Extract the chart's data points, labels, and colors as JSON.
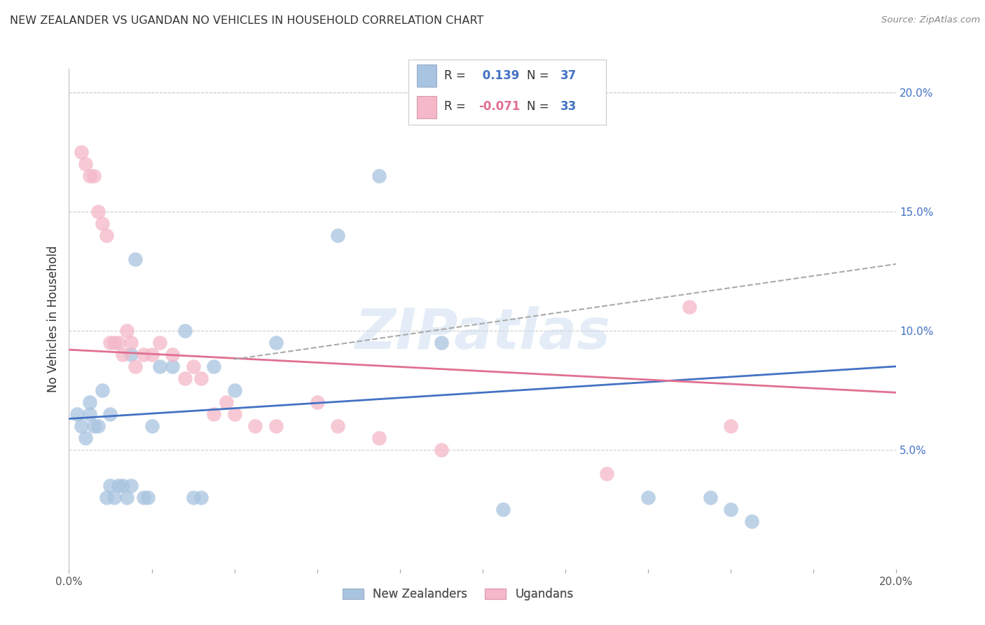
{
  "title": "NEW ZEALANDER VS UGANDAN NO VEHICLES IN HOUSEHOLD CORRELATION CHART",
  "source": "Source: ZipAtlas.com",
  "ylabel": "No Vehicles in Household",
  "right_yticks": [
    "20.0%",
    "15.0%",
    "10.0%",
    "5.0%"
  ],
  "right_ytick_vals": [
    0.2,
    0.15,
    0.1,
    0.05
  ],
  "xlim": [
    0.0,
    0.2
  ],
  "ylim": [
    0.0,
    0.21
  ],
  "legend_nz_r": "0.139",
  "legend_nz_n": "37",
  "legend_ug_r": "-0.071",
  "legend_ug_n": "33",
  "nz_color": "#a8c4e0",
  "ug_color": "#f4b8c8",
  "nz_line_color": "#4472c4",
  "ug_line_color": "#e07090",
  "trend_line_color": "#aaaaaa",
  "watermark": "ZIPatlas",
  "nz_scatter_x": [
    0.002,
    0.003,
    0.004,
    0.005,
    0.005,
    0.006,
    0.007,
    0.008,
    0.009,
    0.01,
    0.01,
    0.011,
    0.012,
    0.013,
    0.014,
    0.015,
    0.015,
    0.016,
    0.018,
    0.019,
    0.02,
    0.022,
    0.025,
    0.028,
    0.03,
    0.032,
    0.035,
    0.04,
    0.05,
    0.065,
    0.075,
    0.09,
    0.105,
    0.14,
    0.155,
    0.16,
    0.165
  ],
  "nz_scatter_y": [
    0.065,
    0.06,
    0.055,
    0.065,
    0.07,
    0.06,
    0.06,
    0.075,
    0.03,
    0.035,
    0.065,
    0.03,
    0.035,
    0.035,
    0.03,
    0.035,
    0.09,
    0.13,
    0.03,
    0.03,
    0.06,
    0.085,
    0.085,
    0.1,
    0.03,
    0.03,
    0.085,
    0.075,
    0.095,
    0.14,
    0.165,
    0.095,
    0.025,
    0.03,
    0.03,
    0.025,
    0.02
  ],
  "ug_scatter_x": [
    0.003,
    0.004,
    0.005,
    0.006,
    0.007,
    0.008,
    0.009,
    0.01,
    0.011,
    0.012,
    0.013,
    0.014,
    0.015,
    0.016,
    0.018,
    0.02,
    0.022,
    0.025,
    0.028,
    0.03,
    0.032,
    0.035,
    0.038,
    0.04,
    0.045,
    0.05,
    0.06,
    0.065,
    0.075,
    0.09,
    0.13,
    0.15,
    0.16
  ],
  "ug_scatter_y": [
    0.175,
    0.17,
    0.165,
    0.165,
    0.15,
    0.145,
    0.14,
    0.095,
    0.095,
    0.095,
    0.09,
    0.1,
    0.095,
    0.085,
    0.09,
    0.09,
    0.095,
    0.09,
    0.08,
    0.085,
    0.08,
    0.065,
    0.07,
    0.065,
    0.06,
    0.06,
    0.07,
    0.06,
    0.055,
    0.05,
    0.04,
    0.11,
    0.06
  ],
  "nz_trend_x": [
    0.0,
    0.2
  ],
  "nz_trend_y": [
    0.063,
    0.085
  ],
  "ug_trend_x": [
    0.0,
    0.2
  ],
  "ug_trend_y": [
    0.092,
    0.074
  ],
  "dashed_trend_x": [
    0.04,
    0.2
  ],
  "dashed_trend_y": [
    0.088,
    0.128
  ]
}
